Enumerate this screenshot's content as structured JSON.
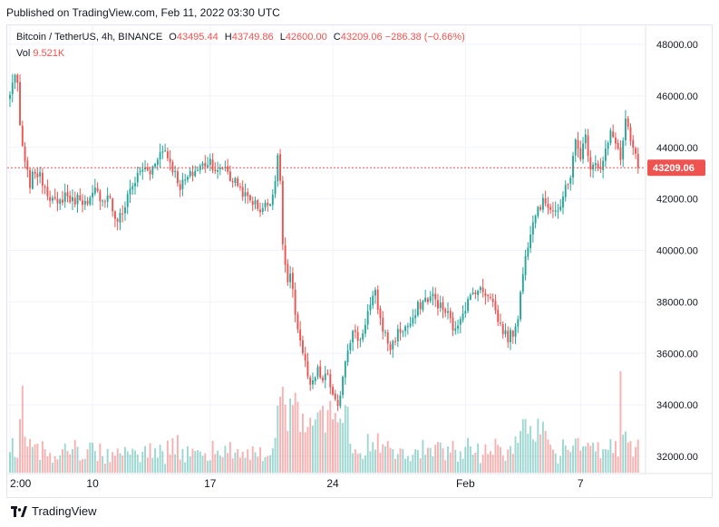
{
  "published": "Published on TradingView.com, Feb 11, 2022 03:30 UTC",
  "legend": {
    "symbol": "Bitcoin / TetherUS, 4h, BINANCE",
    "o_label": "O",
    "o_value": "43495.44",
    "h_label": "H",
    "h_value": "43749.86",
    "l_label": "L",
    "l_value": "42600.00",
    "c_label": "C",
    "c_value": "43209.06",
    "change": "−286.38 (−0.66%)",
    "vol_label": "Vol",
    "vol_value": "9.521K"
  },
  "footer": {
    "brand": "TradingView",
    "logo_icon": "tradingview-logo-icon"
  },
  "colors": {
    "up": "#26a69a",
    "down": "#ef5350",
    "grid": "#f0f3fa",
    "price_line": "#ef5350"
  },
  "chart_data": {
    "type": "candlestick",
    "interval": "4h",
    "x_tick_labels": [
      "2:00",
      "10",
      "17",
      "24",
      "Feb",
      "7"
    ],
    "y_tick_labels": [
      "32000.00",
      "34000.00",
      "36000.00",
      "38000.00",
      "40000.00",
      "42000.00",
      "44000.00",
      "46000.00",
      "48000.00"
    ],
    "ylim": [
      31700,
      48900
    ],
    "last_price_label": "43209.06",
    "last_price": 43209.06,
    "grid": true,
    "close_anchors": [
      [
        0,
        46000
      ],
      [
        1,
        46600
      ],
      [
        2,
        46800
      ],
      [
        3,
        46300
      ],
      [
        4,
        44800
      ],
      [
        6,
        43300
      ],
      [
        8,
        42600
      ],
      [
        10,
        43100
      ],
      [
        13,
        42700
      ],
      [
        16,
        42100
      ],
      [
        19,
        41700
      ],
      [
        22,
        42200
      ],
      [
        25,
        41900
      ],
      [
        28,
        42100
      ],
      [
        31,
        41700
      ],
      [
        34,
        42300
      ],
      [
        37,
        42000
      ],
      [
        40,
        42100
      ],
      [
        42,
        41100
      ],
      [
        45,
        41400
      ],
      [
        47,
        42200
      ],
      [
        50,
        42700
      ],
      [
        53,
        43200
      ],
      [
        56,
        43000
      ],
      [
        59,
        43700
      ],
      [
        62,
        43900
      ],
      [
        65,
        43200
      ],
      [
        68,
        42500
      ],
      [
        71,
        42800
      ],
      [
        74,
        43100
      ],
      [
        77,
        43300
      ],
      [
        80,
        43500
      ],
      [
        83,
        43000
      ],
      [
        86,
        43300
      ],
      [
        88,
        42800
      ],
      [
        91,
        42600
      ],
      [
        94,
        42100
      ],
      [
        97,
        41900
      ],
      [
        100,
        41600
      ],
      [
        103,
        41800
      ],
      [
        105,
        42200
      ],
      [
        107,
        43500
      ],
      [
        108,
        42800
      ],
      [
        109,
        40200
      ],
      [
        111,
        38600
      ],
      [
        112,
        39000
      ],
      [
        114,
        37600
      ],
      [
        116,
        36500
      ],
      [
        118,
        35600
      ],
      [
        120,
        34600
      ],
      [
        123,
        35300
      ],
      [
        125,
        34900
      ],
      [
        127,
        35200
      ],
      [
        129,
        34300
      ],
      [
        131,
        33800
      ],
      [
        133,
        35200
      ],
      [
        135,
        36300
      ],
      [
        137,
        36800
      ],
      [
        140,
        36500
      ],
      [
        143,
        37600
      ],
      [
        146,
        38300
      ],
      [
        148,
        37300
      ],
      [
        150,
        36700
      ],
      [
        152,
        36200
      ],
      [
        155,
        36800
      ],
      [
        158,
        37000
      ],
      [
        161,
        37200
      ],
      [
        163,
        37800
      ],
      [
        166,
        38100
      ],
      [
        169,
        38200
      ],
      [
        172,
        37800
      ],
      [
        175,
        37500
      ],
      [
        178,
        36800
      ],
      [
        180,
        37500
      ],
      [
        183,
        38000
      ],
      [
        186,
        38500
      ],
      [
        189,
        38400
      ],
      [
        192,
        38300
      ],
      [
        195,
        37300
      ],
      [
        197,
        36900
      ],
      [
        199,
        36600
      ],
      [
        201,
        36800
      ],
      [
        203,
        37500
      ],
      [
        205,
        39100
      ],
      [
        207,
        40300
      ],
      [
        209,
        41300
      ],
      [
        211,
        41700
      ],
      [
        214,
        41900
      ],
      [
        217,
        41600
      ],
      [
        220,
        41500
      ],
      [
        222,
        42500
      ],
      [
        224,
        42900
      ],
      [
        226,
        44200
      ],
      [
        228,
        43700
      ],
      [
        230,
        44400
      ],
      [
        232,
        43300
      ],
      [
        234,
        43500
      ],
      [
        236,
        43100
      ],
      [
        238,
        43800
      ],
      [
        240,
        44500
      ],
      [
        242,
        44300
      ],
      [
        244,
        43500
      ],
      [
        246,
        45000
      ],
      [
        248,
        44200
      ],
      [
        250,
        43600
      ],
      [
        251,
        43209
      ]
    ],
    "volume_note": "volume histogram along the bottom; green bars on up candles, red on down candles; peak near x=244"
  }
}
